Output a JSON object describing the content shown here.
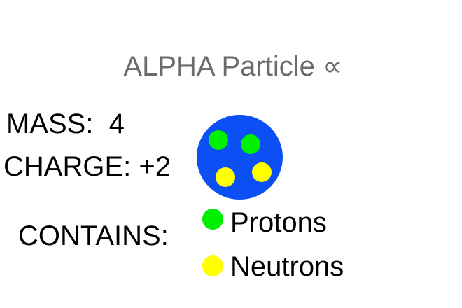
{
  "title": "ALPHA Particle ∝",
  "mass": "MASS:  4",
  "charge": "CHARGE: +2",
  "contains": "CONTAINS:",
  "colors": {
    "nucleus": "#0b4ff5",
    "proton": "#00f000",
    "neutron": "#ffff00"
  },
  "legend": [
    {
      "label": "Protons",
      "color": "#00f000"
    },
    {
      "label": "Neutrons",
      "color": "#ffff00"
    }
  ]
}
